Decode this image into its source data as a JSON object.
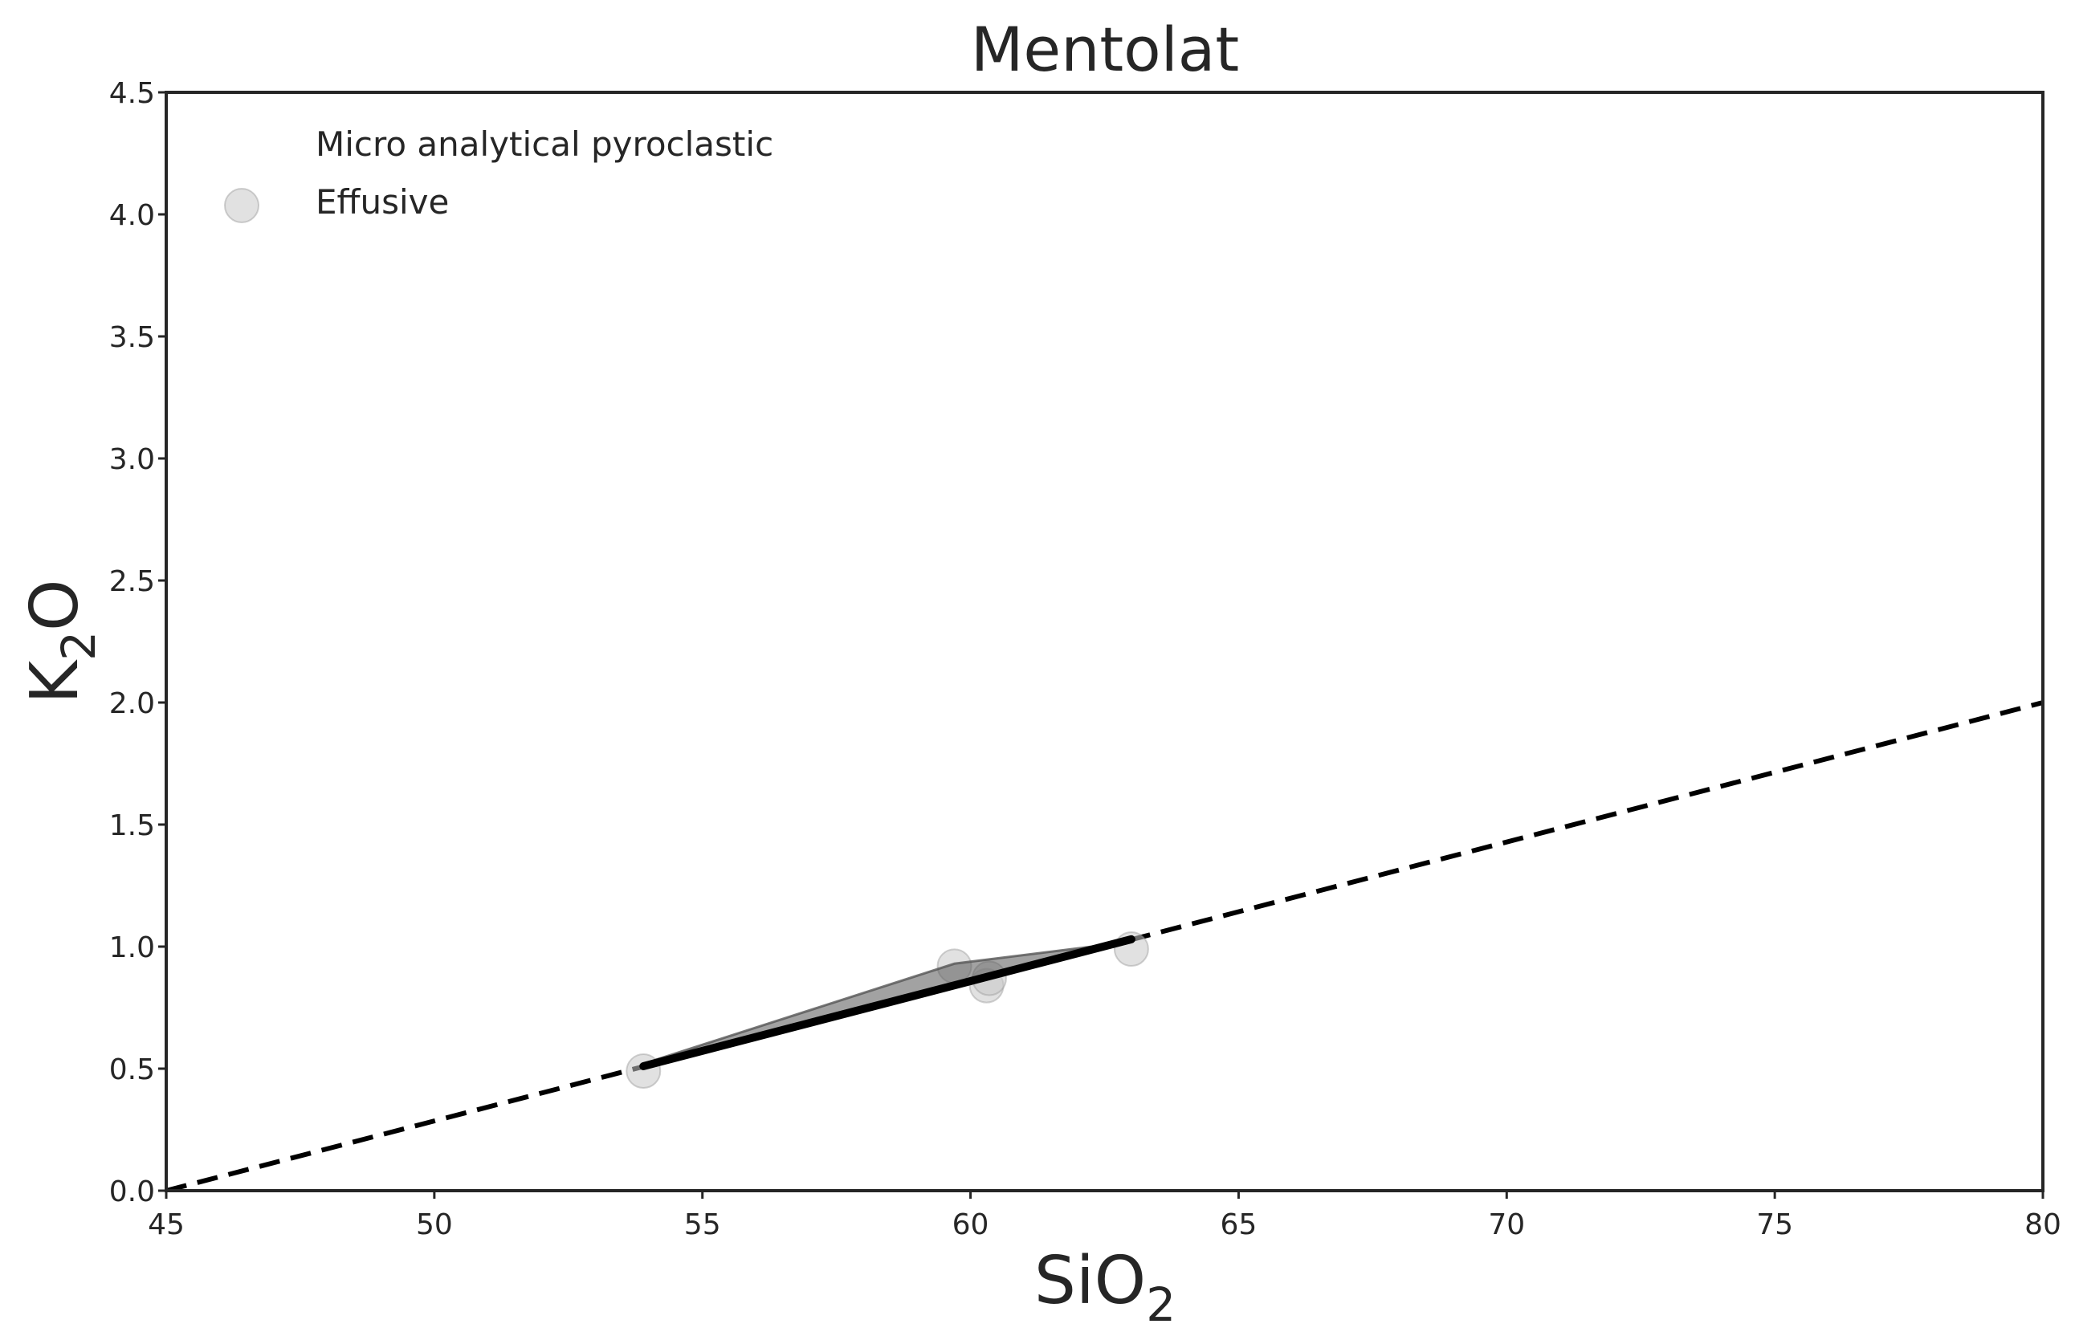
{
  "chart_data": {
    "type": "scatter",
    "title": "Mentolat",
    "xlabel": {
      "main": "SiO",
      "sub": "2"
    },
    "ylabel": {
      "main": "K",
      "sub": "2",
      "tail": "O"
    },
    "xlim": [
      45,
      80
    ],
    "ylim": [
      0,
      4.5
    ],
    "xticks": [
      45,
      50,
      55,
      60,
      65,
      70,
      75,
      80
    ],
    "yticks": [
      0.0,
      0.5,
      1.0,
      1.5,
      2.0,
      2.5,
      3.0,
      3.5,
      4.0,
      4.5
    ],
    "xtick_labels": [
      "45",
      "50",
      "55",
      "60",
      "65",
      "70",
      "75",
      "80"
    ],
    "ytick_labels": [
      "0.0",
      "0.5",
      "1.0",
      "1.5",
      "2.0",
      "2.5",
      "3.0",
      "3.5",
      "4.0",
      "4.5"
    ],
    "grid": false,
    "legend": {
      "placement": "top-left",
      "entries": [
        {
          "label": "Micro analytical pyroclastic",
          "marker": "none"
        },
        {
          "label": "Effusive",
          "marker": "circle"
        }
      ]
    },
    "series": [
      {
        "name": "Effusive",
        "kind": "scatter",
        "color": "#c8c8c8",
        "points": [
          {
            "x": 53.9,
            "y": 0.49
          },
          {
            "x": 59.7,
            "y": 0.92
          },
          {
            "x": 60.3,
            "y": 0.84
          },
          {
            "x": 60.35,
            "y": 0.87
          },
          {
            "x": 63.0,
            "y": 0.99
          }
        ]
      },
      {
        "name": "Micro analytical pyroclastic",
        "kind": "none",
        "points": []
      }
    ],
    "fit_line": {
      "color": "#000000",
      "x": [
        53.9,
        63.0
      ],
      "y": [
        0.51,
        1.03
      ]
    },
    "fit_band": {
      "color": "#555555",
      "upper": [
        {
          "x": 53.9,
          "y": 0.52
        },
        {
          "x": 59.7,
          "y": 0.93
        },
        {
          "x": 63.0,
          "y": 1.02
        }
      ],
      "lower": [
        {
          "x": 63.0,
          "y": 1.02
        },
        {
          "x": 59.7,
          "y": 0.85
        },
        {
          "x": 53.9,
          "y": 0.5
        }
      ]
    },
    "reference_line": {
      "style": "dashed",
      "color": "#000000",
      "x": [
        45,
        80
      ],
      "y": [
        0.0,
        2.0
      ]
    }
  }
}
